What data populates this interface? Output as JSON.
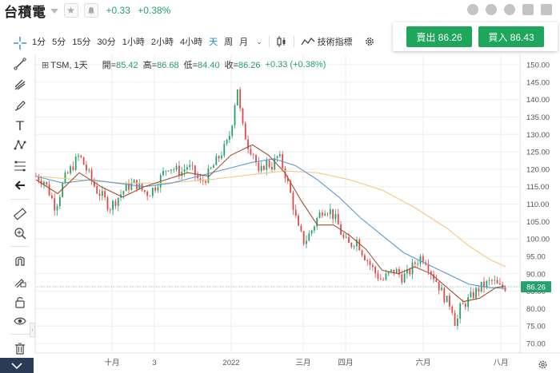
{
  "header": {
    "title": "台積電",
    "change_abs": "+0.33",
    "change_pct": "+0.38%",
    "colors": {
      "up": "#27a06d",
      "down": "#e04848"
    }
  },
  "toolbar": {
    "timeframes": [
      "1分",
      "5分",
      "15分",
      "30分",
      "1小時",
      "2小時",
      "4小時",
      "天",
      "周",
      "月"
    ],
    "active_timeframe": "天",
    "indicators_label": "技術指標",
    "icons": [
      "chart-type-icon",
      "indicators-icon",
      "gear-icon"
    ]
  },
  "trade": {
    "sell_label": "賣出 86.26",
    "buy_label": "買入 86.43"
  },
  "legend": {
    "symbol": "TSM, 1天",
    "open_label": "開=",
    "open": "85.42",
    "high_label": "高=",
    "high": "86.68",
    "low_label": "低=",
    "low": "84.40",
    "close_label": "收=",
    "close": "86.26",
    "change": "+0.33 (+0.38%)"
  },
  "rail": {
    "icons": [
      "crosshair-icon",
      "trend-line-icon",
      "pitchfork-icon",
      "brush-icon",
      "text-icon",
      "pattern-icon",
      "fib-icon",
      "back-arrow-icon",
      "ruler-icon",
      "zoom-in-icon",
      "magnet-icon",
      "lock-draw-icon",
      "lock-icon",
      "eye-icon",
      "trash-icon"
    ]
  },
  "chart_data": {
    "type": "candlestick",
    "symbol": "TSM",
    "interval": "1天",
    "ylim": [
      68,
      152
    ],
    "y_ticks": [
      70,
      75,
      80,
      85,
      90,
      95,
      100,
      105,
      110,
      115,
      120,
      125,
      130,
      135,
      140,
      145,
      150
    ],
    "x_ticks": [
      "十月",
      "3",
      "2022",
      "三月",
      "四月",
      "六月",
      "八月"
    ],
    "last_price": 86.26,
    "last_price_label": "86.26",
    "colors": {
      "up": "#27a06d",
      "down": "#e04848",
      "ma_fast": "#a0522d",
      "ma_mid": "#5b9bd5",
      "ma_slow": "#f5c77e",
      "price_line": "#27a06d",
      "grid": "#eeeeee"
    },
    "close_path": [
      [
        0,
        118
      ],
      [
        8,
        116.5
      ],
      [
        14,
        112
      ],
      [
        18,
        109
      ],
      [
        26,
        117
      ],
      [
        34,
        121
      ],
      [
        40,
        124
      ],
      [
        48,
        119
      ],
      [
        56,
        114
      ],
      [
        62,
        112
      ],
      [
        68,
        109
      ],
      [
        76,
        112
      ],
      [
        84,
        115
      ],
      [
        92,
        116
      ],
      [
        98,
        114
      ],
      [
        104,
        113
      ],
      [
        110,
        115
      ],
      [
        116,
        118
      ],
      [
        122,
        121
      ],
      [
        128,
        120
      ],
      [
        134,
        119
      ],
      [
        140,
        121
      ],
      [
        146,
        119
      ],
      [
        152,
        116
      ],
      [
        158,
        118
      ],
      [
        164,
        121
      ],
      [
        170,
        124
      ],
      [
        176,
        127
      ],
      [
        180,
        131
      ],
      [
        186,
        144
      ],
      [
        190,
        133
      ],
      [
        196,
        127
      ],
      [
        202,
        124
      ],
      [
        206,
        118
      ],
      [
        212,
        122
      ],
      [
        218,
        121
      ],
      [
        224,
        124
      ],
      [
        230,
        119
      ],
      [
        236,
        112
      ],
      [
        242,
        103
      ],
      [
        248,
        99
      ],
      [
        254,
        102
      ],
      [
        260,
        106
      ],
      [
        266,
        109
      ],
      [
        272,
        108
      ],
      [
        278,
        105
      ],
      [
        284,
        100
      ],
      [
        290,
        98
      ],
      [
        296,
        100
      ],
      [
        302,
        96
      ],
      [
        308,
        93
      ],
      [
        314,
        90
      ],
      [
        320,
        88
      ],
      [
        326,
        90
      ],
      [
        332,
        91
      ],
      [
        338,
        89
      ],
      [
        344,
        90
      ],
      [
        350,
        93
      ],
      [
        356,
        95
      ],
      [
        360,
        94
      ],
      [
        366,
        90
      ],
      [
        370,
        88
      ],
      [
        376,
        84
      ],
      [
        380,
        82
      ],
      [
        384,
        81
      ],
      [
        388,
        75
      ],
      [
        392,
        80
      ],
      [
        398,
        82
      ],
      [
        404,
        84
      ],
      [
        410,
        86
      ],
      [
        416,
        87
      ],
      [
        422,
        88
      ],
      [
        428,
        86
      ],
      [
        434,
        86.26
      ]
    ],
    "ma_fast": [
      [
        0,
        117
      ],
      [
        20,
        113
      ],
      [
        40,
        119
      ],
      [
        60,
        115
      ],
      [
        80,
        112
      ],
      [
        100,
        115
      ],
      [
        120,
        117
      ],
      [
        140,
        119
      ],
      [
        160,
        118
      ],
      [
        180,
        124
      ],
      [
        200,
        127
      ],
      [
        215,
        124
      ],
      [
        230,
        119
      ],
      [
        245,
        111
      ],
      [
        260,
        104
      ],
      [
        275,
        104
      ],
      [
        290,
        101
      ],
      [
        305,
        97
      ],
      [
        320,
        91
      ],
      [
        335,
        90
      ],
      [
        350,
        92
      ],
      [
        365,
        90
      ],
      [
        380,
        86
      ],
      [
        395,
        82
      ],
      [
        410,
        83
      ],
      [
        425,
        86
      ],
      [
        434,
        86.5
      ]
    ],
    "ma_mid": [
      [
        0,
        118
      ],
      [
        25,
        116
      ],
      [
        50,
        117
      ],
      [
        75,
        116
      ],
      [
        100,
        115
      ],
      [
        125,
        116
      ],
      [
        150,
        118
      ],
      [
        175,
        120
      ],
      [
        200,
        122
      ],
      [
        220,
        123
      ],
      [
        240,
        121
      ],
      [
        260,
        117
      ],
      [
        280,
        112
      ],
      [
        300,
        106
      ],
      [
        320,
        101
      ],
      [
        340,
        96
      ],
      [
        360,
        93
      ],
      [
        380,
        90
      ],
      [
        400,
        87
      ],
      [
        420,
        86
      ],
      [
        434,
        85.8
      ]
    ],
    "ma_slow": [
      [
        0,
        118
      ],
      [
        40,
        117
      ],
      [
        80,
        116
      ],
      [
        120,
        116
      ],
      [
        160,
        117
      ],
      [
        200,
        118.5
      ],
      [
        230,
        119.5
      ],
      [
        260,
        119
      ],
      [
        290,
        117
      ],
      [
        320,
        114
      ],
      [
        350,
        109
      ],
      [
        380,
        103
      ],
      [
        400,
        98
      ],
      [
        420,
        94
      ],
      [
        434,
        92
      ]
    ]
  }
}
